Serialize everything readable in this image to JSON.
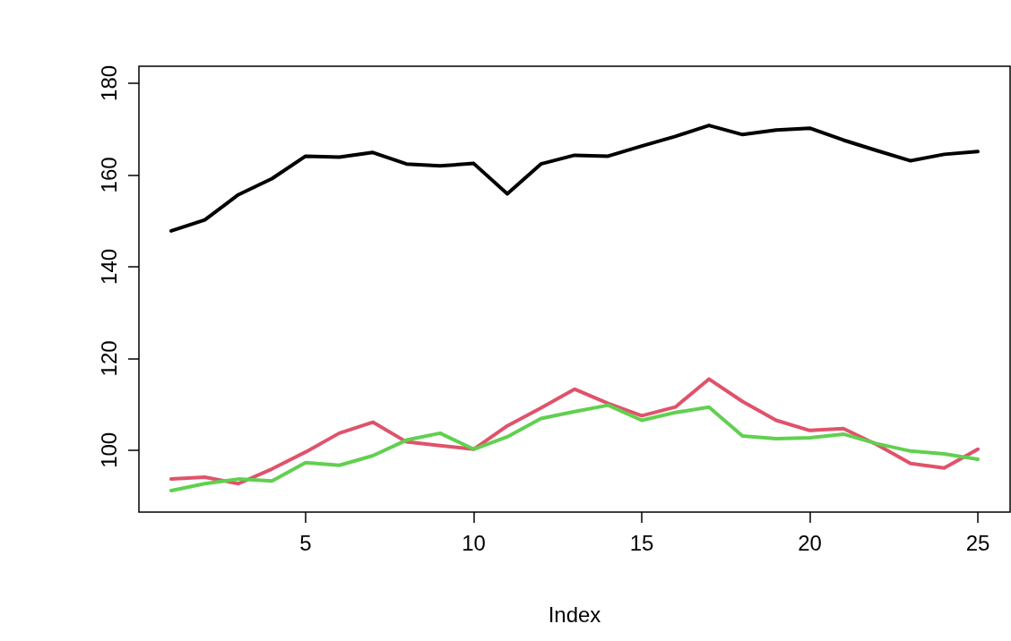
{
  "chart_data": {
    "type": "line",
    "xlabel": "Index",
    "x": [
      1,
      2,
      3,
      4,
      5,
      6,
      7,
      8,
      9,
      10,
      11,
      12,
      13,
      14,
      15,
      16,
      17,
      18,
      19,
      20,
      21,
      22,
      23,
      24,
      25
    ],
    "series": [
      {
        "color": "#000000",
        "values": [
          147.8,
          150.2,
          155.7,
          159.2,
          164.1,
          163.9,
          164.9,
          162.4,
          162,
          162.5,
          155.9,
          162.4,
          164.3,
          164.1,
          166.3,
          168.4,
          170.8,
          168.8,
          169.8,
          170.2,
          167.6,
          165.3,
          163.1,
          164.5,
          165.1
        ]
      },
      {
        "color": "#df536b",
        "values": [
          93.7,
          94.1,
          92.7,
          95.9,
          99.6,
          103.7,
          106.1,
          101.8,
          101,
          100.2,
          105.3,
          109.2,
          113.3,
          110.2,
          107.5,
          109.4,
          115.5,
          110.6,
          106.5,
          104.3,
          104.7,
          101.2,
          97.1,
          96.1,
          100.2
        ]
      },
      {
        "color": "#61d04f",
        "values": [
          91.2,
          92.7,
          93.7,
          93.3,
          97.3,
          96.7,
          98.8,
          102.2,
          103.7,
          100.2,
          102.9,
          106.9,
          108.4,
          109.8,
          106.5,
          108.2,
          109.4,
          103.1,
          102.5,
          102.7,
          103.5,
          101.4,
          99.8,
          99.2,
          98
        ]
      }
    ],
    "xlim": [
      0.04,
      25.96
    ],
    "xticks": [
      5,
      10,
      15,
      20,
      25
    ],
    "ylim": [
      86.5,
      183.7
    ],
    "yticks": [
      100,
      120,
      140,
      160,
      180
    ],
    "grid": false,
    "marker": "none",
    "line_style": "solid"
  }
}
